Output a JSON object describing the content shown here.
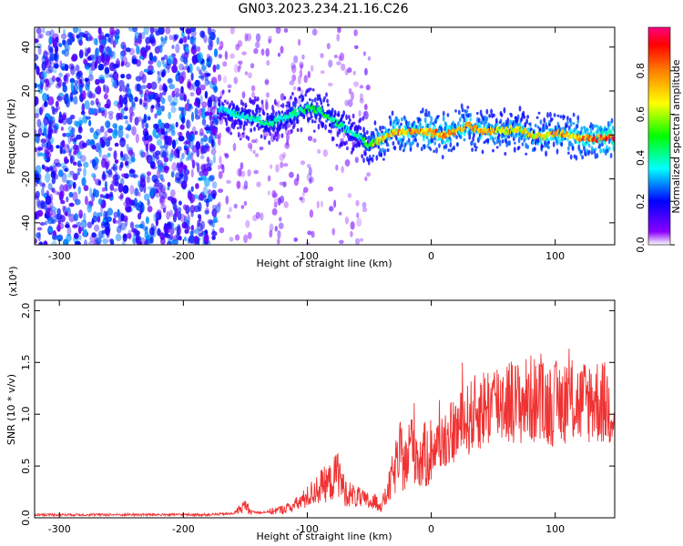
{
  "figure": {
    "title": "GN03.2023.234.21.16.C26"
  },
  "chart_data": [
    {
      "type": "heatmap",
      "title": "GN03.2023.234.21.16.C26",
      "xlabel": "Height of straight line (km)",
      "ylabel": "Frequency (Hz)",
      "xlim": [
        -320,
        148
      ],
      "ylim": [
        -50,
        49
      ],
      "x_ticks": [
        -300,
        -200,
        -100,
        0,
        100
      ],
      "x_tick_labels": [
        "-300",
        "-200",
        "-100",
        "0",
        "100"
      ],
      "y_ticks": [
        -40,
        -20,
        0,
        20,
        40
      ],
      "y_tick_labels": [
        "-40",
        "-20",
        "0",
        "20",
        "40"
      ],
      "colorbar": {
        "label": "Normalized spectral amplitude",
        "range": [
          0.0,
          1.0
        ],
        "ticks": [
          0.0,
          0.2,
          0.4,
          0.6,
          0.8
        ],
        "tick_labels": [
          "0.0",
          "0.2",
          "0.4",
          "0.6",
          "0.8"
        ],
        "colors": [
          "#ffffff",
          "#7a00ff",
          "#0000ff",
          "#00ffff",
          "#00ff00",
          "#ffff00",
          "#ff8000",
          "#ff0000",
          "#ff0080"
        ]
      },
      "ridge": {
        "x": [
          -172,
          -160,
          -150,
          -140,
          -130,
          -120,
          -110,
          -100,
          -90,
          -80,
          -70,
          -60,
          -55,
          -50,
          -45,
          -40,
          -30,
          -20,
          -10,
          0,
          10,
          20,
          30,
          40,
          50,
          60,
          70,
          80,
          90,
          100,
          110,
          120,
          130,
          140,
          148
        ],
        "frequency": [
          12,
          10,
          8,
          7,
          5,
          8,
          10,
          12,
          11,
          7,
          3,
          0,
          -2,
          -5,
          -3,
          -2,
          1,
          1,
          2,
          1,
          0,
          2,
          4,
          2,
          2,
          2,
          3,
          0,
          -1,
          1,
          0,
          -1,
          -2,
          -1,
          -1
        ],
        "amplitude": [
          0.35,
          0.4,
          0.4,
          0.42,
          0.45,
          0.45,
          0.45,
          0.5,
          0.5,
          0.5,
          0.45,
          0.4,
          0.5,
          0.6,
          0.7,
          0.75,
          0.8,
          0.85,
          0.85,
          0.85,
          0.85,
          0.85,
          0.8,
          0.8,
          0.75,
          0.7,
          0.7,
          0.75,
          0.75,
          0.8,
          0.8,
          0.85,
          0.9,
          0.95,
          0.95
        ]
      },
      "noise_band_x": [
        -320,
        -172
      ],
      "sparse_noise_x": [
        -172,
        -50
      ]
    },
    {
      "type": "line",
      "xlabel": "Height of straight line (km)",
      "ylabel": "SNR (10 * v/v)",
      "y_multiplier": "(x10⁴)",
      "xlim": [
        -320,
        148
      ],
      "ylim": [
        0.0,
        2.1
      ],
      "x_ticks": [
        -300,
        -200,
        -100,
        0,
        100
      ],
      "x_tick_labels": [
        "-300",
        "-200",
        "-100",
        "0",
        "100"
      ],
      "y_ticks": [
        0.0,
        0.5,
        1.0,
        1.5,
        2.0
      ],
      "y_tick_labels": [
        "0.0",
        "0.5",
        "1.0",
        "1.5",
        "2.0"
      ],
      "series": [
        {
          "color": "#f03232",
          "x": [
            -320,
            -300,
            -250,
            -200,
            -180,
            -160,
            -155,
            -150,
            -145,
            -140,
            -130,
            -120,
            -110,
            -100,
            -95,
            -90,
            -80,
            -75,
            -70,
            -60,
            -50,
            -45,
            -40,
            -35,
            -30,
            -25,
            -20,
            -15,
            -10,
            -5,
            0,
            10,
            20,
            30,
            40,
            50,
            60,
            70,
            80,
            90,
            100,
            110,
            120,
            130,
            140,
            148
          ],
          "y": [
            0.03,
            0.03,
            0.03,
            0.03,
            0.03,
            0.04,
            0.08,
            0.12,
            0.06,
            0.05,
            0.06,
            0.08,
            0.12,
            0.2,
            0.25,
            0.3,
            0.35,
            0.45,
            0.25,
            0.2,
            0.15,
            0.15,
            0.12,
            0.25,
            0.45,
            0.6,
            0.5,
            0.8,
            0.55,
            0.6,
            0.65,
            0.75,
            0.85,
            0.95,
            1.05,
            1.1,
            1.15,
            1.1,
            1.15,
            1.1,
            1.1,
            1.15,
            1.1,
            1.15,
            1.1,
            1.05
          ]
        }
      ]
    }
  ]
}
